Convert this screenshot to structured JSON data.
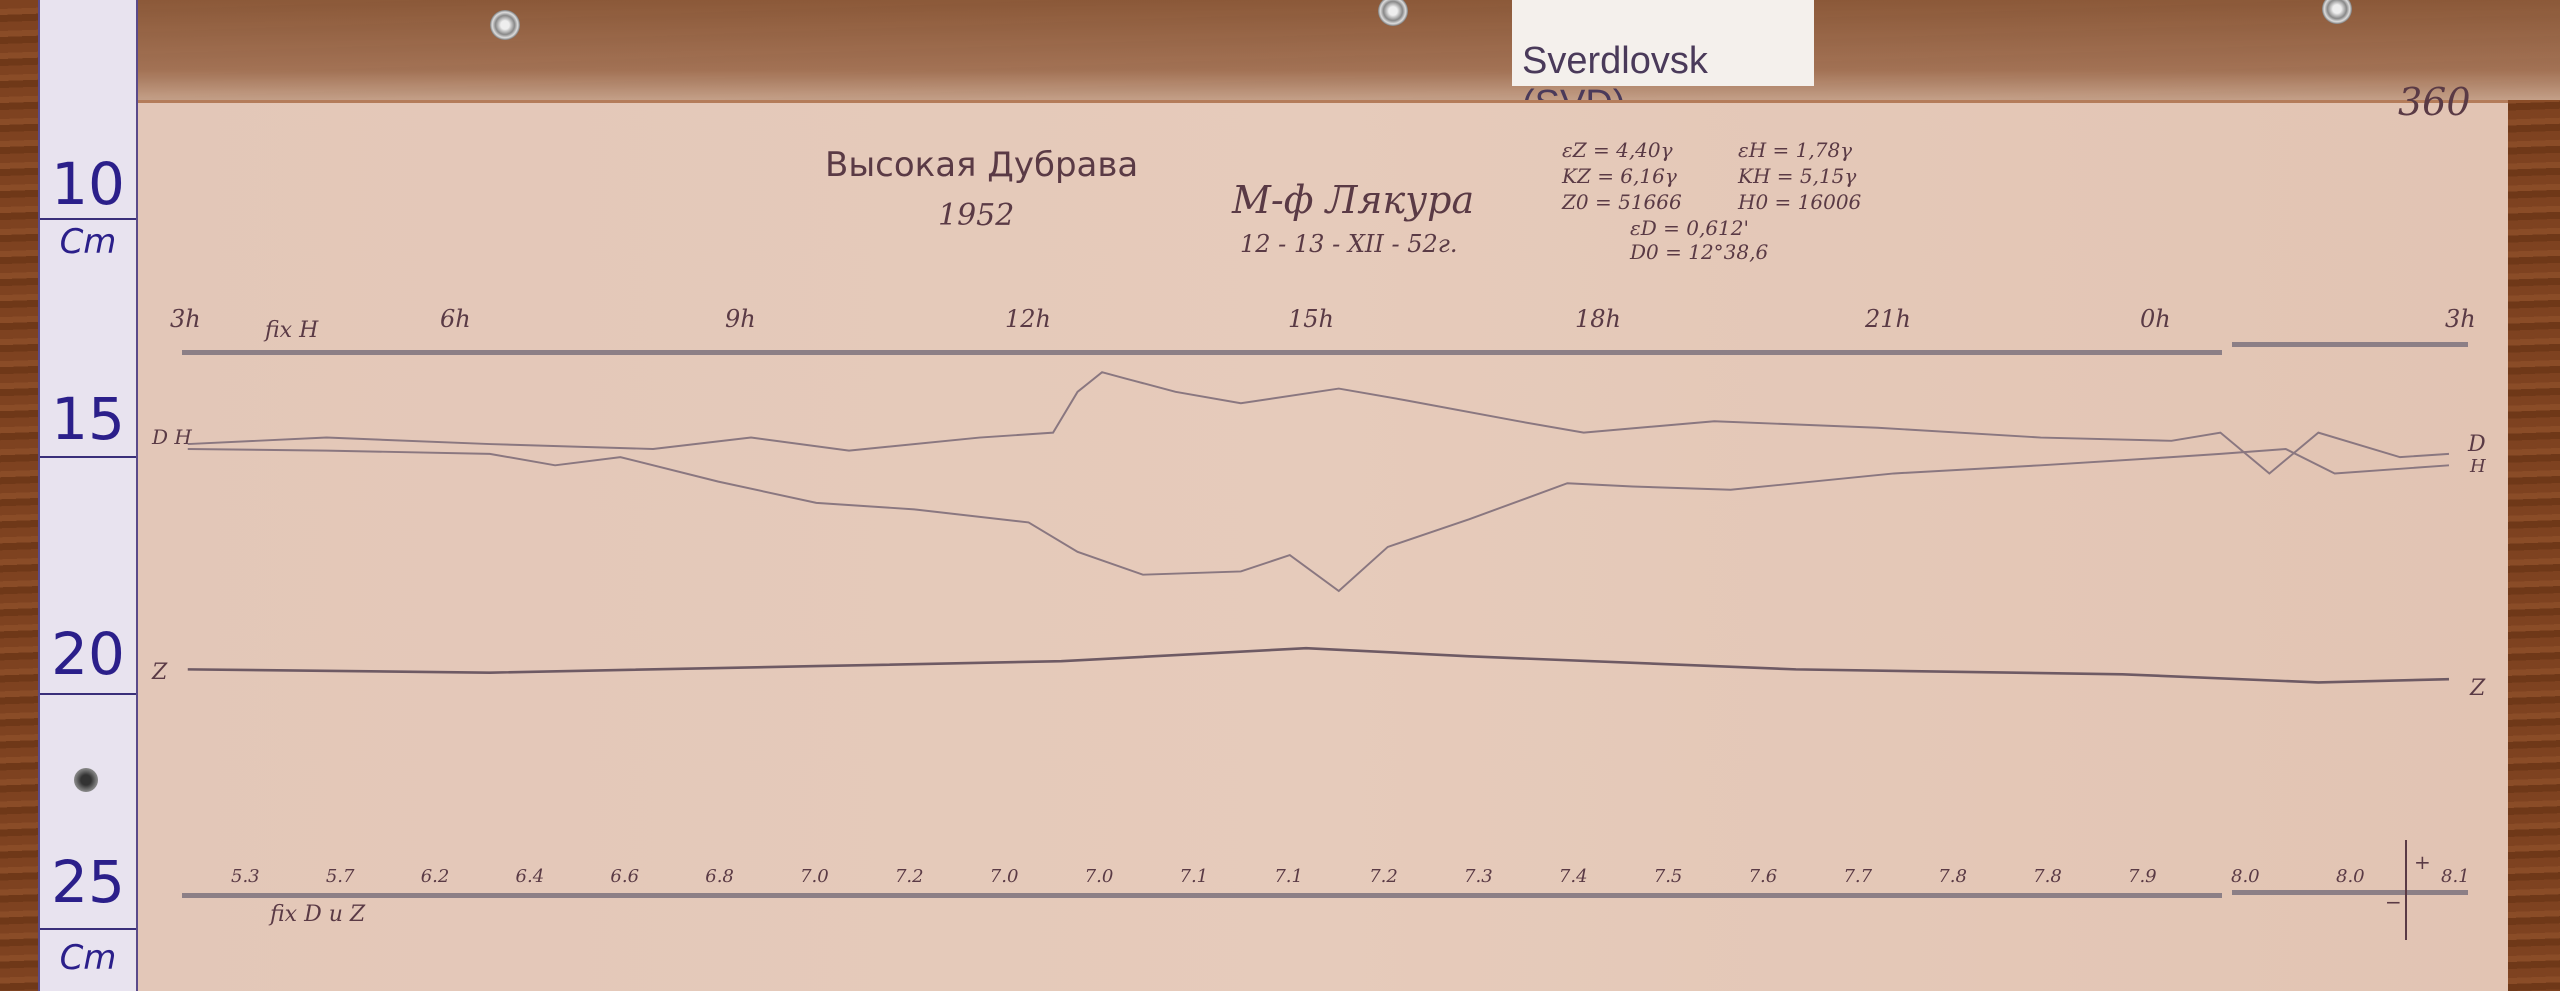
{
  "label": {
    "text": "Sverdlovsk (SVD)"
  },
  "ruler": {
    "marks": [
      "10",
      "15",
      "20",
      "25"
    ],
    "unit": "Cm"
  },
  "sheet": {
    "number": "360",
    "station": "Высокая Дубрава",
    "year": "1952",
    "instrument": "М-ф Лякура",
    "date": "12 - 13 - XII - 52г.",
    "params": [
      "εZ = 4,40γ",
      "εH = 1,78γ",
      "KZ = 6,16γ",
      "KH = 5,15γ",
      "Z0 = 51666",
      "H0 = 16006",
      "εD = 0,612'",
      "D0 = 12°38,6"
    ],
    "fix_h": "fix H",
    "fix_dz": "fix D и Z",
    "plus": "+",
    "minus": "−"
  },
  "chart_data": {
    "type": "line",
    "time_ticks": [
      "3h",
      "6h",
      "9h",
      "12h",
      "15h",
      "18h",
      "21h",
      "0h",
      "3h"
    ],
    "scale_values": [
      "5.3",
      "5.7",
      "6.2",
      "6.4",
      "6.6",
      "6.8",
      "7.0",
      "7.2",
      "7.0",
      "7.0",
      "7.1",
      "7.1",
      "7.2",
      "7.3",
      "7.4",
      "7.5",
      "7.6",
      "7.7",
      "7.8",
      "7.8",
      "7.9",
      "8.0",
      "8.0",
      "8.1"
    ],
    "series": [
      {
        "name": "D",
        "color": "#8a7780"
      },
      {
        "name": "H",
        "color": "#8a7780"
      },
      {
        "name": "Z",
        "color": "#6e5a64"
      }
    ],
    "left_labels": {
      "dh": "D H",
      "z": "Z"
    },
    "right_labels": {
      "d": "D",
      "h": "H",
      "z": "Z"
    }
  }
}
